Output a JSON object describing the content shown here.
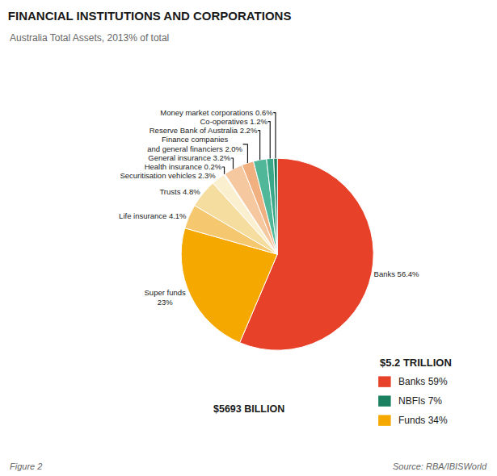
{
  "chart_data": {
    "type": "pie",
    "title": "FINANCIAL INSTITUTIONS AND CORPORATIONS",
    "subtitle": "Australia Total Assets, 2013% of total",
    "values": [
      56.4,
      23.0,
      4.1,
      4.8,
      2.3,
      0.2,
      3.2,
      2.0,
      2.2,
      1.2,
      0.6
    ],
    "value_labels": [
      "Banks 56.4%",
      "Super funds\n23%",
      "Life insurance 4.1%",
      "Trusts 4.8%",
      "Securitisation vehicles 2.3%",
      "Health insurance 0.2%",
      "General insurance 3.2%",
      "Finance companies\nand general financiers 2.0%",
      "Reserve Bank of Australia 2.2%",
      "Co-operatives 1.2%",
      "Money market corporations 0.6%"
    ],
    "colors": [
      "#E8412A",
      "#F5A800",
      "#F5C870",
      "#F5DDA0",
      "#FAF0D0",
      "#E8F5F0",
      "#F5C8A0",
      "#F0B080",
      "#50B898",
      "#3AA888",
      "#1A8060"
    ],
    "data_labels": true,
    "legend_title": "$5.2 TRILLION",
    "legend_items": [
      {
        "label": "Banks 59%",
        "color": "#E8412A"
      },
      {
        "label": "NBFIs 7%",
        "color": "#1A8060"
      },
      {
        "label": "Funds 34%",
        "color": "#F5A800"
      }
    ],
    "annotations": [
      "$5693 BILLION",
      "Figure 2",
      "Source: RBA/IBISWorld"
    ]
  }
}
